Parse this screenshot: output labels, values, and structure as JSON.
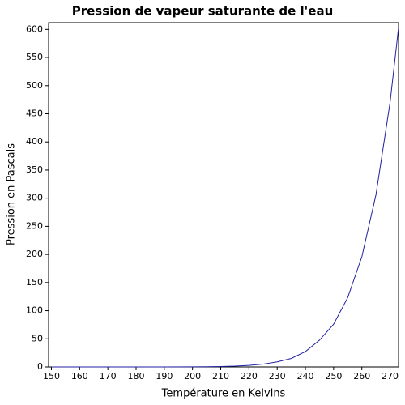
{
  "chart_data": {
    "type": "line",
    "title": "Pression de vapeur saturante de l'eau",
    "x_label": "Température en Kelvins",
    "y_label": "Pression en Pascals",
    "x": [
      150,
      160,
      170,
      180,
      190,
      200,
      205,
      210,
      215,
      220,
      225,
      230,
      235,
      240,
      245,
      250,
      255,
      260,
      265,
      270,
      273
    ],
    "series": [
      {
        "color": "#2020a0",
        "values": [
          6.1e-06,
          7.7e-05,
          0.00073,
          0.0054,
          0.032,
          0.163,
          0.33,
          0.7,
          1.39,
          2.65,
          4.95,
          8.97,
          15.1,
          27.3,
          47.6,
          76.0,
          123.4,
          195.8,
          306.0,
          470.1,
          603
        ]
      }
    ],
    "xlim": [
      149,
      273
    ],
    "ylim": [
      0,
      612
    ],
    "xticks": [
      150,
      160,
      170,
      180,
      190,
      200,
      210,
      220,
      230,
      240,
      250,
      260,
      270
    ],
    "yticks": [
      0,
      50,
      100,
      150,
      200,
      250,
      300,
      350,
      400,
      450,
      500,
      550,
      600
    ],
    "grid": false
  }
}
